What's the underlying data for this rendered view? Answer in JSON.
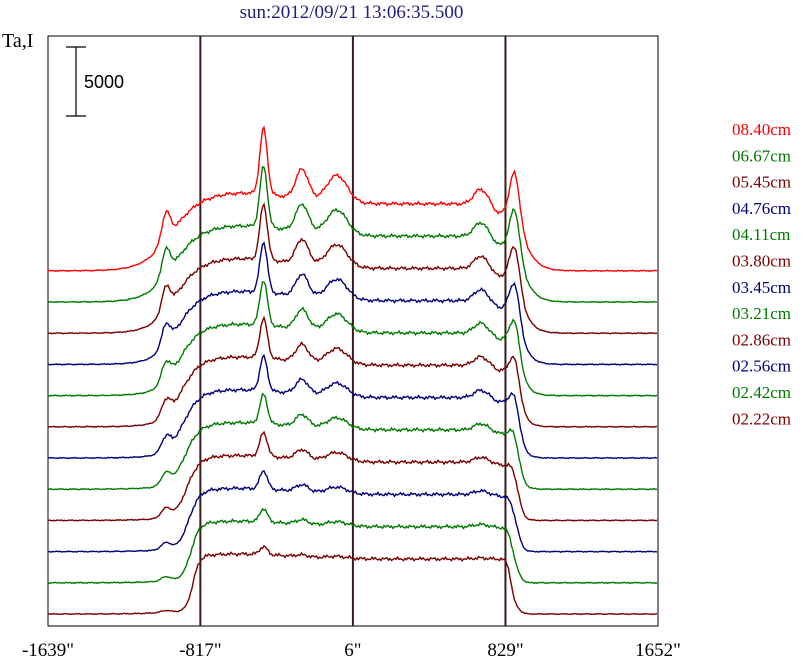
{
  "chart_data": {
    "type": "line",
    "title": "sun:2012/09/21 13:06:35.500",
    "ylabel": "Ta,I",
    "scale_bar_label": "5000",
    "scale_bar_value": 5000,
    "x_ticks": [
      {
        "label": "-1639\"",
        "value": -1639
      },
      {
        "label": "-817\"",
        "value": -817
      },
      {
        "label": "6\"",
        "value": 6
      },
      {
        "label": "829\"",
        "value": 829
      },
      {
        "label": "1652\"",
        "value": 1652
      }
    ],
    "xlim": [
      -1639,
      1652
    ],
    "limb_markers": [
      -817,
      6,
      829
    ],
    "series": [
      {
        "name": "08.40cm",
        "color": "#ff0000"
      },
      {
        "name": "06.67cm",
        "color": "#007a00"
      },
      {
        "name": "05.45cm",
        "color": "#7a0000"
      },
      {
        "name": "04.76cm",
        "color": "#00007a"
      },
      {
        "name": "04.11cm",
        "color": "#007a00"
      },
      {
        "name": "03.80cm",
        "color": "#7a0000"
      },
      {
        "name": "03.45cm",
        "color": "#00007a"
      },
      {
        "name": "03.21cm",
        "color": "#007a00"
      },
      {
        "name": "02.86cm",
        "color": "#7a0000"
      },
      {
        "name": "02.56cm",
        "color": "#00007a"
      },
      {
        "name": "02.42cm",
        "color": "#007a00"
      },
      {
        "name": "02.22cm",
        "color": "#7a0000"
      }
    ]
  }
}
